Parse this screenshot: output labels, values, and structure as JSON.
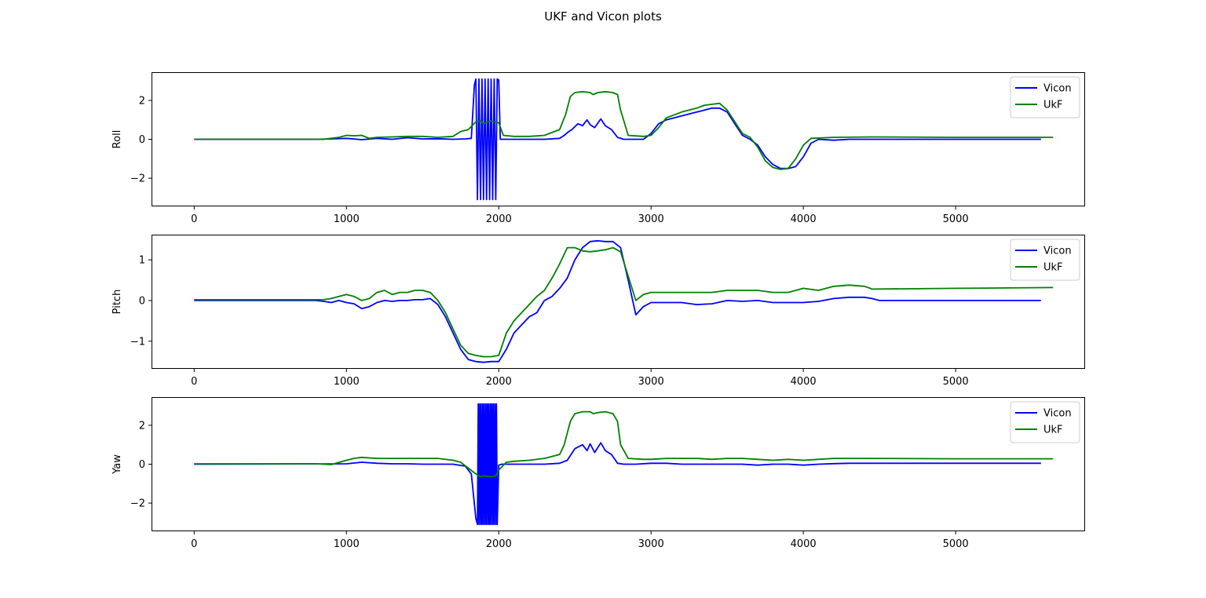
{
  "figure": {
    "title": "UKF and Vicon plots"
  },
  "colors": {
    "vicon": "#0000ff",
    "ukf": "#008000",
    "axes": "#000000",
    "legend_border": "#cccccc"
  },
  "chart_data": [
    {
      "type": "line",
      "ylabel": "Roll",
      "xlim": [
        -280,
        5850
      ],
      "ylim": [
        -3.45,
        3.45
      ],
      "xticks": [
        0,
        1000,
        2000,
        3000,
        4000,
        5000
      ],
      "yticks": [
        -2,
        0,
        2
      ],
      "legend": "top-right",
      "series": [
        {
          "name": "Vicon",
          "x": [
            0,
            800,
            900,
            1000,
            1100,
            1200,
            1300,
            1400,
            1500,
            1600,
            1700,
            1780,
            1820,
            1840,
            1850,
            1860,
            1870,
            1880,
            1890,
            1900,
            1910,
            1920,
            1930,
            1940,
            1950,
            1960,
            1970,
            1980,
            1990,
            2000,
            2010,
            2100,
            2200,
            2300,
            2400,
            2430,
            2460,
            2480,
            2520,
            2550,
            2580,
            2600,
            2630,
            2670,
            2700,
            2740,
            2780,
            2820,
            2900,
            2950,
            3000,
            3050,
            3100,
            3200,
            3300,
            3400,
            3450,
            3500,
            3550,
            3600,
            3650,
            3700,
            3750,
            3800,
            3850,
            3900,
            3950,
            4000,
            4050,
            4100,
            4200,
            4300,
            4400,
            4500,
            5000,
            5560
          ],
          "y": [
            0,
            0,
            0.02,
            0.05,
            -0.02,
            0.05,
            0,
            0.08,
            0.02,
            0.03,
            0,
            0.02,
            0.05,
            2.8,
            3.1,
            -3.1,
            3.1,
            -3.1,
            3.1,
            -3.1,
            3.1,
            -3.1,
            3.1,
            -3.1,
            3.1,
            -3.1,
            3.1,
            -3.1,
            3.1,
            3.05,
            0,
            0,
            0,
            0,
            0.05,
            0.2,
            0.4,
            0.5,
            0.8,
            0.7,
            1.0,
            0.75,
            0.6,
            1.05,
            0.7,
            0.5,
            0.1,
            0,
            0,
            0,
            0.3,
            0.8,
            1.0,
            1.2,
            1.4,
            1.6,
            1.6,
            1.4,
            0.8,
            0.2,
            0,
            -0.3,
            -0.9,
            -1.3,
            -1.5,
            -1.5,
            -1.4,
            -0.9,
            -0.2,
            0,
            -0.05,
            0,
            0,
            0,
            0,
            0
          ]
        },
        {
          "name": "UkF",
          "x": [
            0,
            850,
            950,
            1000,
            1050,
            1100,
            1150,
            1200,
            1300,
            1400,
            1500,
            1600,
            1700,
            1750,
            1800,
            1850,
            1880,
            1900,
            1950,
            2000,
            2030,
            2100,
            2200,
            2300,
            2400,
            2440,
            2470,
            2500,
            2550,
            2600,
            2620,
            2650,
            2700,
            2750,
            2780,
            2800,
            2850,
            2950,
            3000,
            3050,
            3100,
            3200,
            3300,
            3350,
            3400,
            3450,
            3500,
            3550,
            3600,
            3650,
            3700,
            3750,
            3800,
            3850,
            3900,
            3950,
            4000,
            4050,
            4200,
            4450,
            5000,
            5640
          ],
          "y": [
            0,
            0,
            0.1,
            0.2,
            0.18,
            0.2,
            0.05,
            0.1,
            0.12,
            0.15,
            0.15,
            0.1,
            0.15,
            0.4,
            0.5,
            0.9,
            0.95,
            0.8,
            0.95,
            0.85,
            0.2,
            0.15,
            0.15,
            0.2,
            0.5,
            1.3,
            2.2,
            2.4,
            2.45,
            2.4,
            2.3,
            2.4,
            2.45,
            2.4,
            2.3,
            1.5,
            0.2,
            0.15,
            0.2,
            0.6,
            1.1,
            1.4,
            1.6,
            1.75,
            1.8,
            1.85,
            1.5,
            0.9,
            0.3,
            0.1,
            -0.4,
            -1.1,
            -1.45,
            -1.55,
            -1.5,
            -1.0,
            -0.3,
            0.05,
            0.1,
            0.12,
            0.1,
            0.1
          ]
        }
      ]
    },
    {
      "type": "line",
      "ylabel": "Pitch",
      "xlim": [
        -280,
        5850
      ],
      "ylim": [
        -1.68,
        1.62
      ],
      "xticks": [
        0,
        1000,
        2000,
        3000,
        4000,
        5000
      ],
      "yticks": [
        -1,
        0,
        1
      ],
      "legend": "top-right",
      "series": [
        {
          "name": "Vicon",
          "x": [
            0,
            800,
            850,
            900,
            950,
            1000,
            1050,
            1100,
            1150,
            1200,
            1250,
            1300,
            1350,
            1400,
            1450,
            1500,
            1550,
            1600,
            1650,
            1700,
            1750,
            1800,
            1850,
            1900,
            1950,
            2000,
            2050,
            2100,
            2150,
            2200,
            2250,
            2300,
            2350,
            2400,
            2450,
            2500,
            2550,
            2600,
            2650,
            2700,
            2750,
            2800,
            2850,
            2900,
            2950,
            3000,
            3100,
            3200,
            3300,
            3400,
            3500,
            3600,
            3700,
            3800,
            3900,
            4000,
            4100,
            4200,
            4300,
            4400,
            4450,
            4500,
            5000,
            5560
          ],
          "y": [
            0,
            0,
            -0.02,
            -0.05,
            0,
            -0.05,
            -0.08,
            -0.2,
            -0.15,
            -0.05,
            0,
            -0.02,
            0,
            0,
            0.02,
            0.02,
            0.05,
            -0.1,
            -0.4,
            -0.8,
            -1.2,
            -1.45,
            -1.5,
            -1.52,
            -1.5,
            -1.5,
            -1.2,
            -0.8,
            -0.6,
            -0.4,
            -0.3,
            0,
            0.1,
            0.3,
            0.55,
            1.0,
            1.3,
            1.45,
            1.47,
            1.45,
            1.45,
            1.3,
            0.5,
            -0.35,
            -0.15,
            -0.05,
            -0.05,
            -0.05,
            -0.1,
            -0.08,
            0,
            -0.02,
            0,
            -0.05,
            -0.05,
            -0.05,
            -0.02,
            0.05,
            0.08,
            0.08,
            0.05,
            0,
            0,
            0
          ]
        },
        {
          "name": "UkF",
          "x": [
            0,
            800,
            850,
            900,
            950,
            1000,
            1050,
            1100,
            1150,
            1200,
            1250,
            1300,
            1350,
            1400,
            1450,
            1500,
            1550,
            1600,
            1650,
            1700,
            1750,
            1800,
            1850,
            1900,
            1950,
            2000,
            2050,
            2100,
            2150,
            2200,
            2250,
            2300,
            2350,
            2400,
            2450,
            2500,
            2550,
            2600,
            2650,
            2700,
            2750,
            2800,
            2850,
            2900,
            2950,
            3000,
            3100,
            3200,
            3300,
            3400,
            3500,
            3600,
            3700,
            3800,
            3900,
            4000,
            4100,
            4200,
            4300,
            4400,
            4440,
            4450,
            5000,
            5640
          ],
          "y": [
            0.02,
            0.02,
            0.02,
            0.05,
            0.1,
            0.15,
            0.1,
            0,
            0.05,
            0.2,
            0.25,
            0.15,
            0.2,
            0.2,
            0.25,
            0.25,
            0.2,
            0,
            -0.3,
            -0.7,
            -1.1,
            -1.3,
            -1.35,
            -1.38,
            -1.38,
            -1.35,
            -0.8,
            -0.5,
            -0.3,
            -0.1,
            0.1,
            0.25,
            0.55,
            0.9,
            1.3,
            1.3,
            1.22,
            1.2,
            1.22,
            1.25,
            1.3,
            1.2,
            0.6,
            0.0,
            0.15,
            0.2,
            0.2,
            0.2,
            0.2,
            0.2,
            0.25,
            0.25,
            0.25,
            0.2,
            0.2,
            0.3,
            0.25,
            0.35,
            0.38,
            0.35,
            0.3,
            0.28,
            0.3,
            0.32
          ]
        }
      ]
    },
    {
      "type": "line",
      "ylabel": "Yaw",
      "xlim": [
        -280,
        5850
      ],
      "ylim": [
        -3.45,
        3.45
      ],
      "xticks": [
        0,
        1000,
        2000,
        3000,
        4000,
        5000
      ],
      "yticks": [
        -2,
        0,
        2
      ],
      "legend": "top-right",
      "series": [
        {
          "name": "Vicon",
          "x": [
            0,
            1000,
            1100,
            1200,
            1300,
            1400,
            1500,
            1600,
            1700,
            1780,
            1820,
            1850,
            1860,
            1865,
            1870,
            1875,
            1880,
            1885,
            1890,
            1895,
            1900,
            1905,
            1910,
            1915,
            1920,
            1925,
            1930,
            1935,
            1940,
            1945,
            1950,
            1955,
            1960,
            1965,
            1970,
            1975,
            1980,
            1985,
            1990,
            2000,
            2020,
            2100,
            2200,
            2300,
            2400,
            2450,
            2500,
            2550,
            2580,
            2600,
            2630,
            2670,
            2700,
            2740,
            2780,
            2820,
            2900,
            3000,
            3100,
            3200,
            3300,
            3400,
            3500,
            3600,
            3700,
            3800,
            3900,
            4000,
            4100,
            4200,
            4300,
            4400,
            4500,
            5000,
            5560
          ],
          "y": [
            0,
            0.02,
            0.1,
            0.05,
            0.02,
            0.02,
            0,
            0,
            0,
            -0.1,
            -0.5,
            -2.8,
            -3.1,
            3.1,
            -3.1,
            3.1,
            -3.1,
            3.1,
            -3.1,
            3.1,
            -3.1,
            3.1,
            -3.1,
            3.1,
            -3.1,
            3.1,
            -3.1,
            3.1,
            -3.1,
            3.1,
            -3.1,
            3.1,
            -3.1,
            3.1,
            -3.1,
            3.1,
            -3.1,
            3.1,
            -3.1,
            -0.05,
            0,
            0,
            0,
            0,
            0.05,
            0.2,
            0.8,
            1.0,
            0.7,
            1.05,
            0.6,
            1.1,
            0.7,
            0.5,
            0.05,
            0,
            0,
            0.05,
            0.05,
            0,
            0,
            0,
            0,
            0,
            -0.05,
            0,
            0,
            -0.05,
            0,
            0.03,
            0.05,
            0.05,
            0.05,
            0.05,
            0.05
          ]
        },
        {
          "name": "UkF",
          "x": [
            0,
            800,
            850,
            900,
            1000,
            1050,
            1100,
            1200,
            1300,
            1400,
            1500,
            1600,
            1700,
            1750,
            1800,
            1850,
            1880,
            1900,
            1950,
            1980,
            2000,
            2050,
            2100,
            2200,
            2300,
            2400,
            2430,
            2470,
            2500,
            2550,
            2600,
            2620,
            2650,
            2700,
            2750,
            2780,
            2800,
            2850,
            2950,
            3000,
            3100,
            3200,
            3300,
            3400,
            3500,
            3600,
            3700,
            3800,
            3900,
            4000,
            4100,
            4200,
            4300,
            4400,
            4450,
            5000,
            5640
          ],
          "y": [
            0.02,
            0.02,
            0,
            -0.02,
            0.2,
            0.3,
            0.35,
            0.3,
            0.3,
            0.3,
            0.3,
            0.3,
            0.2,
            0.1,
            -0.2,
            -0.5,
            -0.65,
            -0.6,
            -0.65,
            -0.6,
            -0.3,
            0.1,
            0.15,
            0.2,
            0.3,
            0.5,
            1.0,
            2.2,
            2.6,
            2.7,
            2.7,
            2.6,
            2.65,
            2.7,
            2.6,
            2.2,
            1.0,
            0.3,
            0.25,
            0.25,
            0.3,
            0.3,
            0.3,
            0.25,
            0.3,
            0.3,
            0.25,
            0.2,
            0.25,
            0.2,
            0.25,
            0.3,
            0.3,
            0.3,
            0.3,
            0.28,
            0.28
          ]
        }
      ]
    }
  ]
}
